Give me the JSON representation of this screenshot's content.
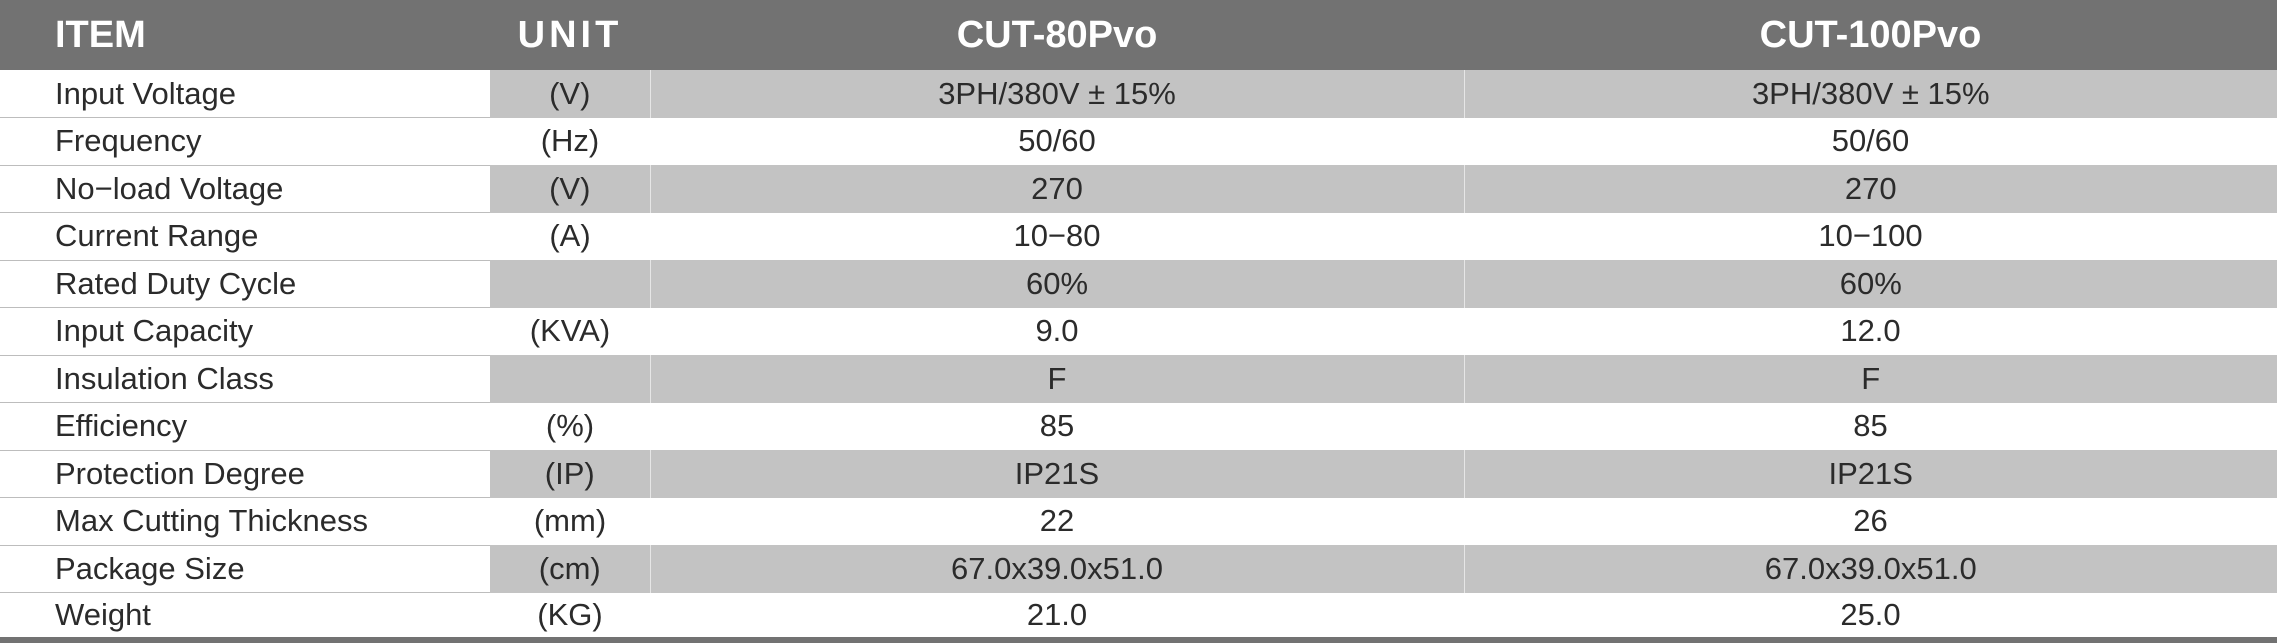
{
  "header": {
    "item": "ITEM",
    "unit": "UNIT",
    "model_1": "CUT-80Pvo",
    "model_2": "CUT-100Pvo"
  },
  "rows": [
    {
      "item": "Input Voltage",
      "unit": "(V)",
      "model_1": "3PH/380V ± 15%",
      "model_2": "3PH/380V ± 15%"
    },
    {
      "item": "Frequency",
      "unit": "(Hz)",
      "model_1": "50/60",
      "model_2": "50/60"
    },
    {
      "item": "No−load Voltage",
      "unit": "(V)",
      "model_1": "270",
      "model_2": "270"
    },
    {
      "item": "Current Range",
      "unit": "(A)",
      "model_1": "10−80",
      "model_2": "10−100"
    },
    {
      "item": "Rated Duty Cycle",
      "unit": "",
      "model_1": "60%",
      "model_2": "60%"
    },
    {
      "item": "Input Capacity",
      "unit": "(KVA)",
      "model_1": "9.0",
      "model_2": "12.0"
    },
    {
      "item": "Insulation Class",
      "unit": "",
      "model_1": "F",
      "model_2": "F"
    },
    {
      "item": "Efficiency",
      "unit": "(%)",
      "model_1": "85",
      "model_2": "85"
    },
    {
      "item": "Protection Degree",
      "unit": "(IP)",
      "model_1": "IP21S",
      "model_2": "IP21S"
    },
    {
      "item": "Max Cutting Thickness",
      "unit": "(mm)",
      "model_1": "22",
      "model_2": "26"
    },
    {
      "item": "Package Size",
      "unit": "(cm)",
      "model_1": "67.0x39.0x51.0",
      "model_2": "67.0x39.0x51.0"
    },
    {
      "item": "Weight",
      "unit": "(KG)",
      "model_1": "21.0",
      "model_2": "25.0"
    }
  ],
  "colors": {
    "header_bg": "#727272",
    "header_text": "#ffffff",
    "shaded_row_bg": "#c3c3c3",
    "text": "#2b2b2b"
  }
}
